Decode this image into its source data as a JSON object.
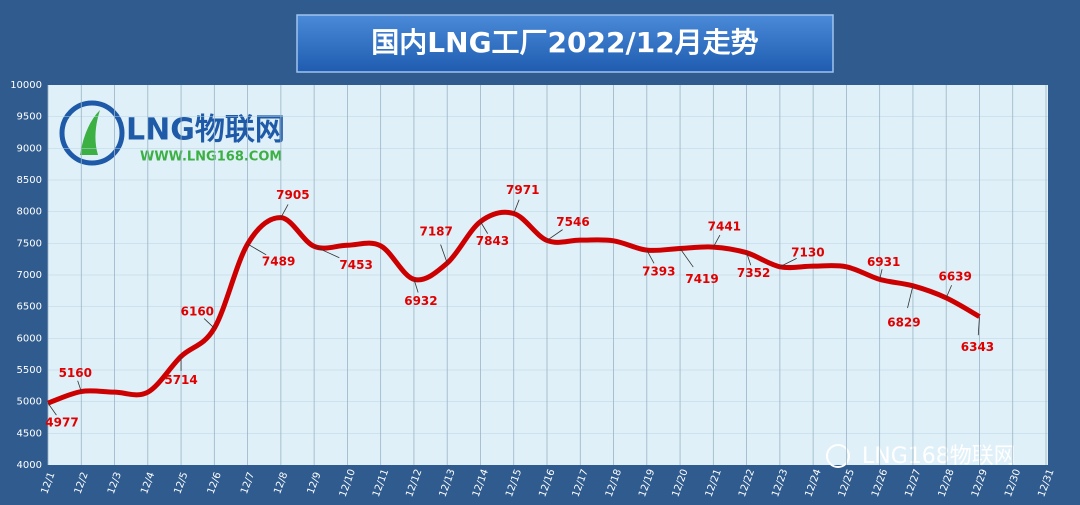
{
  "chart_data": {
    "type": "line",
    "title": "国内LNG工厂2022/12月走势",
    "logo_text": "LNG物联网",
    "logo_url": "WWW.LNG168.COM",
    "watermark": "LNG168物联网",
    "categories": [
      "12/1",
      "12/2",
      "12/3",
      "12/4",
      "12/5",
      "12/6",
      "12/7",
      "12/8",
      "12/9",
      "12/10",
      "12/11",
      "12/12",
      "12/13",
      "12/14",
      "12/15",
      "12/16",
      "12/17",
      "12/18",
      "12/19",
      "12/20",
      "12/21",
      "12/22",
      "12/23",
      "12/24",
      "12/25",
      "12/26",
      "12/27",
      "12/28",
      "12/29",
      "12/30",
      "12/31"
    ],
    "series": [
      {
        "name": "LNG",
        "color": "#cc0000",
        "values": [
          4977,
          5160,
          5150,
          5150,
          5714,
          6160,
          7489,
          7905,
          7453,
          7470,
          7460,
          6932,
          7187,
          7843,
          7971,
          7546,
          7550,
          7540,
          7393,
          7419,
          7441,
          7352,
          7130,
          7140,
          7130,
          6931,
          6829,
          6639,
          6343,
          null,
          null
        ],
        "value_labels": [
          "4977",
          "5160",
          null,
          null,
          "5714",
          "6160",
          "7489",
          "7905",
          "7453",
          null,
          null,
          "6932",
          "7187",
          "7843",
          "7971",
          "7546",
          null,
          null,
          "7393",
          "7419",
          "7441",
          "7352",
          "7130",
          null,
          null,
          "6931",
          "6829",
          "6639",
          "6343",
          null,
          null
        ]
      }
    ],
    "ylim": [
      4000,
      10000
    ],
    "yticks": [
      4000,
      4500,
      5000,
      5500,
      6000,
      6500,
      7000,
      7500,
      8000,
      8500,
      9000,
      9500,
      10000
    ],
    "grid": true
  }
}
